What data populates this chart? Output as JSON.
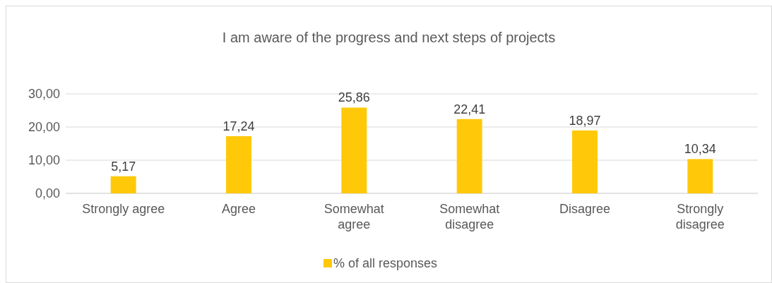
{
  "chart_data": {
    "type": "bar",
    "title": "I am aware of the progress and next steps of projects",
    "categories": [
      "Strongly agree",
      "Agree",
      "Somewhat agree",
      "Somewhat disagree",
      "Disagree",
      "Strongly disagree"
    ],
    "series": [
      {
        "name": "% of all responses",
        "color": "#ffc90a",
        "values": [
          5.17,
          17.24,
          25.86,
          22.41,
          18.97,
          10.34
        ],
        "value_labels": [
          "5,17",
          "17,24",
          "25,86",
          "22,41",
          "18,97",
          "10,34"
        ]
      }
    ],
    "ylim": [
      0,
      30
    ],
    "yticks": [
      {
        "value": 0,
        "label": "0,00"
      },
      {
        "value": 10,
        "label": "10,00"
      },
      {
        "value": 20,
        "label": "20,00"
      },
      {
        "value": 30,
        "label": "30,00"
      }
    ],
    "grid": "y",
    "legend": "bottom"
  }
}
